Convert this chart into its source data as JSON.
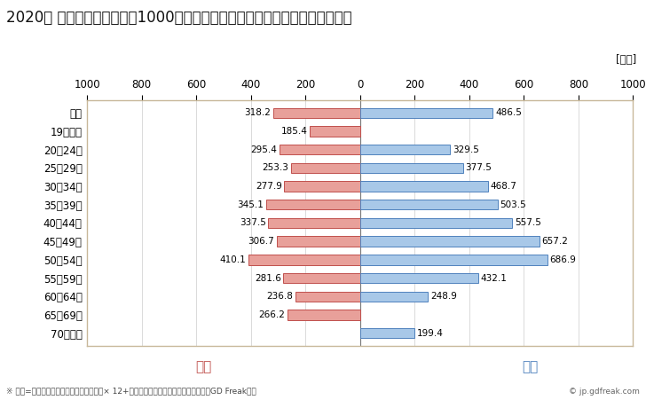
{
  "title": "2020年 民間企業（従業者数1000人以上）フルタイム労働者の男女別平均年収",
  "unit_label": "[万円]",
  "categories": [
    "全体",
    "19歳以下",
    "20～24歳",
    "25～29歳",
    "30～34歳",
    "35～39歳",
    "40～44歳",
    "45～49歳",
    "50～54歳",
    "55～59歳",
    "60～64歳",
    "65～69歳",
    "70歳以上"
  ],
  "female_values": [
    318.2,
    185.4,
    295.4,
    253.3,
    277.9,
    345.1,
    337.5,
    306.7,
    410.1,
    281.6,
    236.8,
    266.2,
    0
  ],
  "male_values": [
    486.5,
    0,
    329.5,
    377.5,
    468.7,
    503.5,
    557.5,
    657.2,
    686.9,
    432.1,
    248.9,
    0,
    199.4
  ],
  "female_color": "#e8a09a",
  "male_color": "#a8c8e8",
  "female_border_color": "#c0504d",
  "male_border_color": "#4f81bd",
  "female_label": "女性",
  "male_label": "男性",
  "female_label_color": "#c0504d",
  "male_label_color": "#4f81bd",
  "xlim": 1000,
  "background_color": "#ffffff",
  "plot_bg_color": "#ffffff",
  "grid_color": "#cccccc",
  "footer_note": "※ 年収=「きまって支給する現金給与額」× 12+「年間賞与その他特別給与額」としてGD Freak推計",
  "copyright": "© jp.gdfreak.com",
  "title_fontsize": 12,
  "axis_fontsize": 9,
  "bar_height": 0.55,
  "border_color": "#c8b89a",
  "border_linewidth": 1.0
}
